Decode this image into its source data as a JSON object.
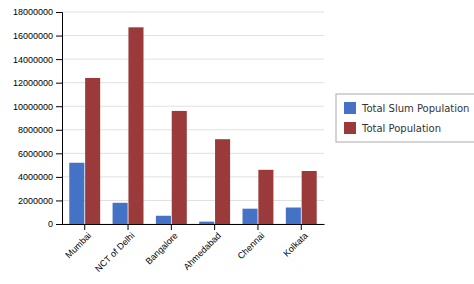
{
  "chart_data": {
    "type": "bar",
    "categories": [
      "Mumbai",
      "NCT of Delhi",
      "Bangalore",
      "Ahmedabad",
      "Chennai",
      "Kolkata"
    ],
    "series": [
      {
        "name": "Total Slum Population",
        "color": "#4472C4",
        "values": [
          5200000,
          1800000,
          700000,
          200000,
          1300000,
          1400000
        ]
      },
      {
        "name": "Total Population",
        "color": "#9B3A3A",
        "values": [
          12400000,
          16700000,
          9600000,
          7200000,
          4600000,
          4500000
        ]
      }
    ],
    "ylim": [
      0,
      18000000
    ],
    "yticks": [
      0,
      2000000,
      4000000,
      6000000,
      8000000,
      10000000,
      12000000,
      14000000,
      16000000,
      18000000
    ],
    "grid": true,
    "legend": "right"
  }
}
